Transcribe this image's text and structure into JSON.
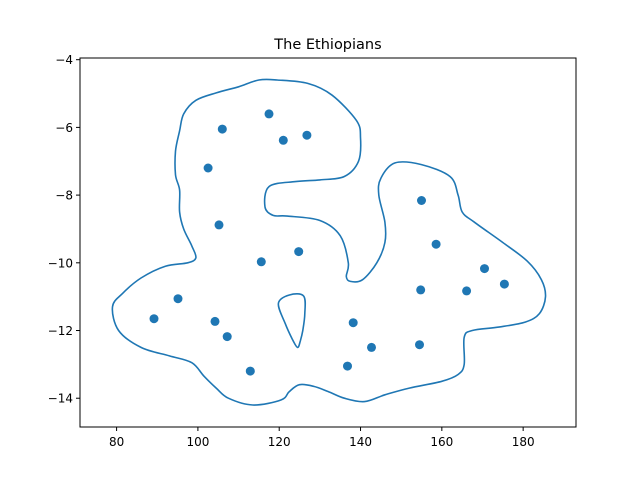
{
  "chart_data": {
    "type": "scatter",
    "title": "The Ethiopians",
    "xlabel": "",
    "ylabel": "",
    "xlim": [
      71,
      193
    ],
    "ylim": [
      -14.85,
      -3.95
    ],
    "grid": false,
    "xticks": [
      80,
      100,
      120,
      140,
      160,
      180
    ],
    "yticks": [
      -14,
      -12,
      -10,
      -8,
      -6,
      -4
    ],
    "color": "#1f77b4",
    "points": [
      {
        "x": 117.5,
        "y": -5.6
      },
      {
        "x": 106.0,
        "y": -6.05
      },
      {
        "x": 121.0,
        "y": -6.38
      },
      {
        "x": 126.8,
        "y": -6.23
      },
      {
        "x": 102.5,
        "y": -7.2
      },
      {
        "x": 155.0,
        "y": -8.16
      },
      {
        "x": 105.2,
        "y": -8.88
      },
      {
        "x": 158.6,
        "y": -9.45
      },
      {
        "x": 124.8,
        "y": -9.67
      },
      {
        "x": 115.6,
        "y": -9.97
      },
      {
        "x": 170.5,
        "y": -10.17
      },
      {
        "x": 175.4,
        "y": -10.63
      },
      {
        "x": 154.8,
        "y": -10.8
      },
      {
        "x": 166.1,
        "y": -10.83
      },
      {
        "x": 95.1,
        "y": -11.06
      },
      {
        "x": 89.2,
        "y": -11.65
      },
      {
        "x": 104.2,
        "y": -11.73
      },
      {
        "x": 138.2,
        "y": -11.77
      },
      {
        "x": 107.2,
        "y": -12.18
      },
      {
        "x": 154.5,
        "y": -12.42
      },
      {
        "x": 142.7,
        "y": -12.5
      },
      {
        "x": 136.8,
        "y": -13.05
      },
      {
        "x": 112.9,
        "y": -13.2
      }
    ],
    "outline": [
      [
        119.5,
        -4.6
      ],
      [
        127,
        -4.7
      ],
      [
        133,
        -5.05
      ],
      [
        139,
        -5.8
      ],
      [
        140,
        -6.3
      ],
      [
        139.5,
        -7.0
      ],
      [
        136,
        -7.45
      ],
      [
        130,
        -7.55
      ],
      [
        124,
        -7.6
      ],
      [
        117.5,
        -7.75
      ],
      [
        116.5,
        -8.35
      ],
      [
        118.5,
        -8.6
      ],
      [
        122,
        -8.62
      ],
      [
        130,
        -8.75
      ],
      [
        135,
        -9.2
      ],
      [
        137,
        -10.0
      ],
      [
        136.5,
        -10.4
      ],
      [
        137.5,
        -10.55
      ],
      [
        140.5,
        -10.5
      ],
      [
        144,
        -10.0
      ],
      [
        146,
        -9.4
      ],
      [
        146,
        -8.8
      ],
      [
        144.5,
        -8.0
      ],
      [
        145,
        -7.5
      ],
      [
        148.5,
        -7.05
      ],
      [
        155,
        -7.1
      ],
      [
        162,
        -7.45
      ],
      [
        164,
        -8.0
      ],
      [
        165,
        -8.5
      ],
      [
        168,
        -8.8
      ],
      [
        175,
        -9.4
      ],
      [
        181,
        -9.95
      ],
      [
        184.5,
        -10.5
      ],
      [
        185.5,
        -11.0
      ],
      [
        184,
        -11.5
      ],
      [
        180.5,
        -11.75
      ],
      [
        174,
        -11.9
      ],
      [
        167.5,
        -12.0
      ],
      [
        165.5,
        -12.2
      ],
      [
        165.5,
        -13.0
      ],
      [
        164,
        -13.3
      ],
      [
        160,
        -13.5
      ],
      [
        152,
        -13.7
      ],
      [
        146,
        -13.9
      ],
      [
        141,
        -14.1
      ],
      [
        136,
        -14.0
      ],
      [
        132,
        -13.8
      ],
      [
        128.5,
        -13.65
      ],
      [
        125,
        -13.6
      ],
      [
        122.5,
        -13.8
      ],
      [
        120.5,
        -14.05
      ],
      [
        113.5,
        -14.2
      ],
      [
        107.5,
        -14.0
      ],
      [
        104.5,
        -13.7
      ],
      [
        101.5,
        -13.35
      ],
      [
        98.5,
        -12.95
      ],
      [
        93,
        -12.75
      ],
      [
        86,
        -12.5
      ],
      [
        80.5,
        -12.0
      ],
      [
        79,
        -11.3
      ],
      [
        81.5,
        -10.9
      ],
      [
        86,
        -10.45
      ],
      [
        92,
        -10.1
      ],
      [
        97.5,
        -10.0
      ],
      [
        99.5,
        -9.85
      ],
      [
        98.5,
        -9.5
      ],
      [
        96.5,
        -9.0
      ],
      [
        95.5,
        -8.5
      ],
      [
        95.5,
        -7.85
      ],
      [
        94.5,
        -7.4
      ],
      [
        94.5,
        -6.7
      ],
      [
        95.5,
        -6.1
      ],
      [
        96.5,
        -5.6
      ],
      [
        99.5,
        -5.2
      ],
      [
        104.5,
        -4.98
      ],
      [
        110,
        -4.8
      ],
      [
        115,
        -4.6
      ]
    ],
    "hole": [
      [
        122.5,
        -10.95
      ],
      [
        126,
        -10.98
      ],
      [
        126.3,
        -11.5
      ],
      [
        125.8,
        -12.0
      ],
      [
        125.2,
        -12.3
      ],
      [
        124.5,
        -12.5
      ],
      [
        123.2,
        -12.25
      ],
      [
        121.5,
        -11.8
      ],
      [
        119.8,
        -11.2
      ]
    ]
  }
}
